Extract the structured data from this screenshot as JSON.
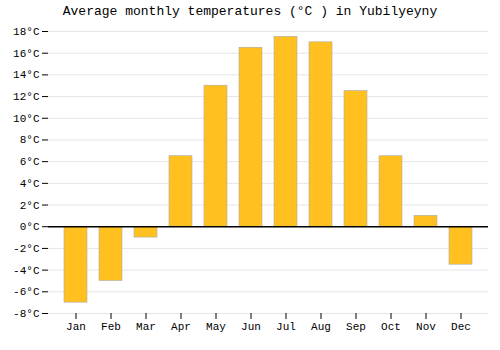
{
  "chart_data": {
    "type": "bar",
    "title": "Average monthly temperatures (°C ) in Yubilyeyny",
    "categories": [
      "Jan",
      "Feb",
      "Mar",
      "Apr",
      "May",
      "Jun",
      "Jul",
      "Aug",
      "Sep",
      "Oct",
      "Nov",
      "Dec"
    ],
    "values": [
      -7.0,
      -5.0,
      -1.0,
      6.5,
      13.0,
      16.5,
      17.5,
      17.0,
      12.5,
      6.5,
      1.0,
      -3.5
    ],
    "color": "#FFC020",
    "ylim": [
      -8,
      18
    ],
    "yticks": [
      {
        "value": -8,
        "label": "-8°C"
      },
      {
        "value": -6,
        "label": "-6°C"
      },
      {
        "value": -4,
        "label": "-4°C"
      },
      {
        "value": -2,
        "label": "-2°C"
      },
      {
        "value": 0,
        "label": "0°C"
      },
      {
        "value": 2,
        "label": "2°C"
      },
      {
        "value": 4,
        "label": "4°C"
      },
      {
        "value": 6,
        "label": "6°C"
      },
      {
        "value": 8,
        "label": "8°C"
      },
      {
        "value": 10,
        "label": "10°C"
      },
      {
        "value": 12,
        "label": "12°C"
      },
      {
        "value": 14,
        "label": "14°C"
      },
      {
        "value": 16,
        "label": "16°C"
      },
      {
        "value": 18,
        "label": "18°C"
      }
    ],
    "grid": true
  }
}
